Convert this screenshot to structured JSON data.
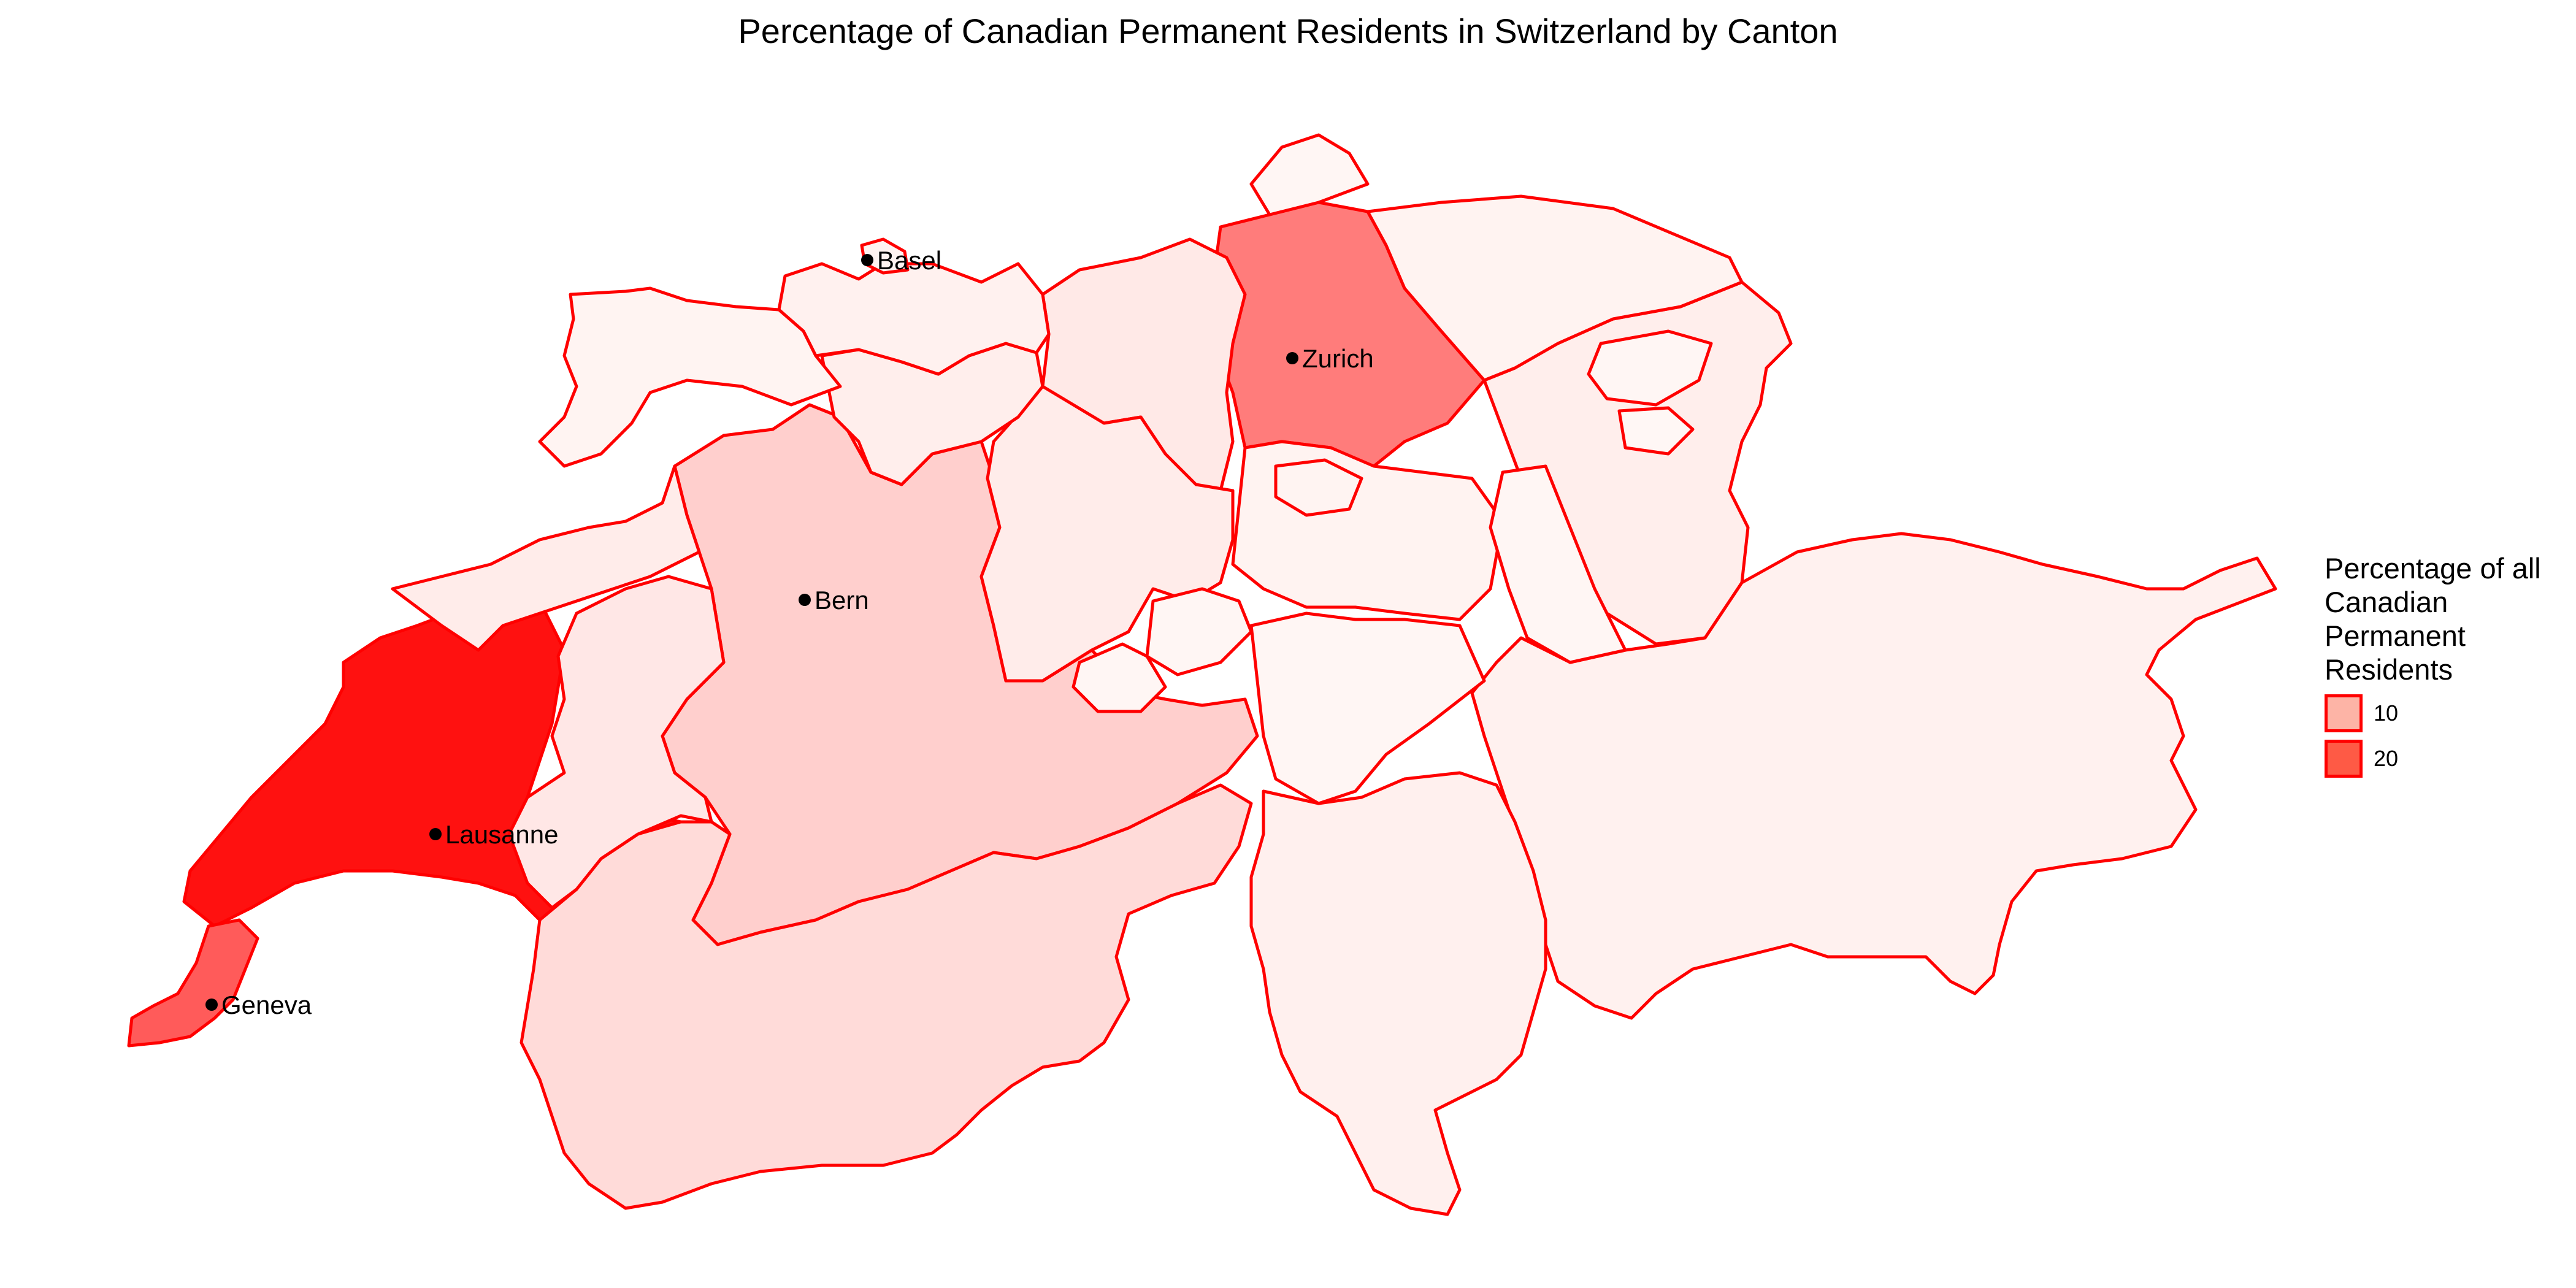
{
  "title": "Percentage of Canadian Permanent Residents in Switzerland by Canton",
  "colors": {
    "border": "#ff0000",
    "scale_low": "#fff5f3",
    "scale_mid": "#fdb4a6",
    "scale_high": "#ff0000"
  },
  "legend": {
    "title": "Percentage of all Canadian Permanent Residents",
    "position": "right",
    "items": [
      {
        "label": "10",
        "value": 10,
        "color": "#fdb4a6"
      },
      {
        "label": "20",
        "value": 20,
        "color": "#fe5a45"
      }
    ]
  },
  "chart_data": {
    "type": "choropleth",
    "title": "Percentage of Canadian Permanent Residents in Switzerland by Canton",
    "regions": [
      {
        "id": "vd",
        "value": 28
      },
      {
        "id": "ge",
        "value": 19
      },
      {
        "id": "zh",
        "value": 15
      },
      {
        "id": "be",
        "value": 5
      },
      {
        "id": "vs",
        "value": 3.5
      },
      {
        "id": "fr",
        "value": 2
      },
      {
        "id": "ne",
        "value": 1.5
      },
      {
        "id": "ag",
        "value": 1.8
      },
      {
        "id": "lu",
        "value": 1.5
      },
      {
        "id": "so",
        "value": 1.2
      },
      {
        "id": "sg",
        "value": 1.2
      },
      {
        "id": "gr",
        "value": 0.8
      },
      {
        "id": "ti",
        "value": 1
      },
      {
        "id": "bl",
        "value": 0.8
      },
      {
        "id": "ju",
        "value": 0.5
      },
      {
        "id": "sz",
        "value": 0.6
      },
      {
        "id": "tg",
        "value": 0.6
      },
      {
        "id": "sh",
        "value": 0.3
      },
      {
        "id": "gl",
        "value": 0.2
      },
      {
        "id": "ur",
        "value": 0.2
      },
      {
        "id": "ow",
        "value": 0.3
      },
      {
        "id": "nw",
        "value": 0.3
      },
      {
        "id": "zg",
        "value": 0.5
      },
      {
        "id": "ar",
        "value": 0.2
      },
      {
        "id": "ai",
        "value": 0.1
      },
      {
        "id": "bs",
        "value": 0.6
      }
    ],
    "cities": [
      {
        "name": "Basel"
      },
      {
        "name": "Zurich"
      },
      {
        "name": "Bern"
      },
      {
        "name": "Lausanne"
      },
      {
        "name": "Geneva"
      }
    ],
    "scale_breaks": [
      10,
      20
    ]
  }
}
